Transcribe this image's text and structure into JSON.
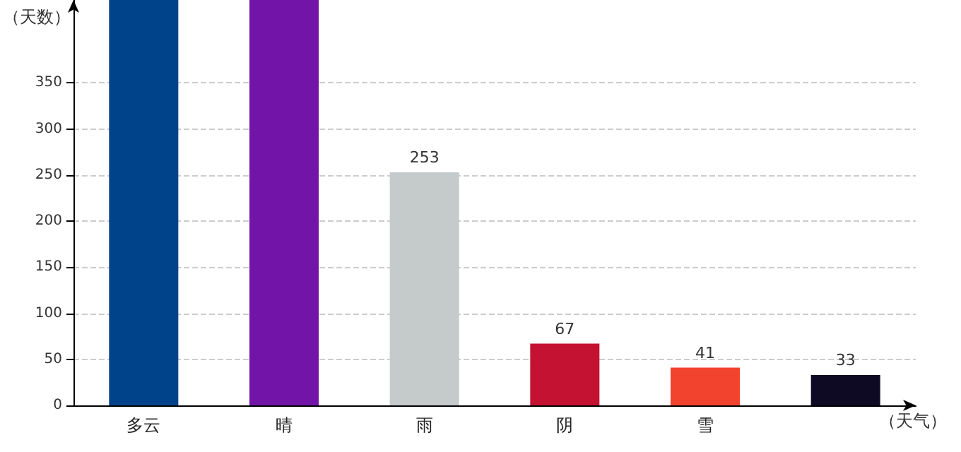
{
  "chart_data": {
    "type": "bar",
    "xlabel": "（天气）",
    "ylabel": "（天数）",
    "categories": [
      "多云",
      "晴",
      "雨",
      "阴",
      "雪",
      null
    ],
    "values": [
      440,
      440,
      253,
      67,
      41,
      33
    ],
    "colors": [
      "#00438a",
      "#7314a8",
      "#c5cacb",
      "#c41232",
      "#f2432e",
      "#0e0a24"
    ],
    "value_labels": [
      null,
      null,
      "253",
      "67",
      "41",
      "33"
    ],
    "ylim": [
      0,
      440
    ],
    "yticks": [
      0,
      50,
      100,
      150,
      200,
      250,
      300,
      350
    ],
    "grid": "y"
  }
}
